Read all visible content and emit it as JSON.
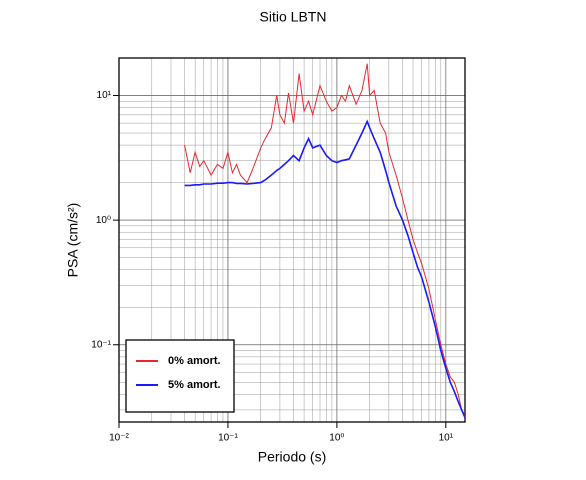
{
  "chart_data": {
    "type": "line",
    "title": "Sitio LBTN",
    "xlabel": "Periodo (s)",
    "ylabel": "PSA (cm/s²)",
    "xscale": "log",
    "yscale": "log",
    "grid": true,
    "legend": "lower left",
    "xlim": [
      0.01,
      15
    ],
    "ylim": [
      0.024,
      20
    ],
    "xticks": [
      {
        "value": 0.01,
        "label": "10⁻²"
      },
      {
        "value": 0.1,
        "label": "10⁻¹"
      },
      {
        "value": 1,
        "label": "10⁰"
      },
      {
        "value": 10,
        "label": "10¹"
      }
    ],
    "yticks": [
      {
        "value": 0.1,
        "label": "10⁻¹"
      },
      {
        "value": 1,
        "label": "10⁰"
      },
      {
        "value": 10,
        "label": "10¹"
      }
    ],
    "x": [
      0.04,
      0.045,
      0.05,
      0.055,
      0.06,
      0.07,
      0.08,
      0.09,
      0.1,
      0.11,
      0.12,
      0.13,
      0.15,
      0.17,
      0.2,
      0.22,
      0.25,
      0.28,
      0.3,
      0.33,
      0.36,
      0.4,
      0.45,
      0.5,
      0.55,
      0.6,
      0.7,
      0.8,
      0.9,
      1.0,
      1.1,
      1.2,
      1.3,
      1.5,
      1.7,
      1.9,
      2.0,
      2.2,
      2.5,
      2.8,
      3.0,
      3.5,
      4.0,
      4.5,
      5.0,
      5.5,
      6.0,
      7.0,
      8.0,
      9.0,
      10,
      11,
      12,
      13,
      14,
      15
    ],
    "series": [
      {
        "name": "0% amort.",
        "color": "#e8282d",
        "width": 1,
        "values": [
          4.0,
          2.4,
          3.5,
          2.7,
          3.0,
          2.3,
          2.8,
          2.6,
          3.5,
          2.4,
          2.8,
          2.3,
          2.0,
          2.6,
          3.8,
          4.5,
          5.5,
          10,
          7,
          6,
          10.5,
          6,
          15,
          7.5,
          9,
          7,
          12,
          9,
          7.5,
          8,
          10,
          9,
          12,
          8.5,
          11,
          18,
          10,
          11,
          6,
          5,
          3.5,
          2.3,
          1.5,
          1.0,
          0.7,
          0.55,
          0.45,
          0.28,
          0.16,
          0.1,
          0.07,
          0.055,
          0.05,
          0.04,
          0.03,
          0.027
        ]
      },
      {
        "name": "5% amort.",
        "color": "#1a1aff",
        "width": 1.6,
        "values": [
          1.9,
          1.9,
          1.92,
          1.92,
          1.95,
          1.95,
          1.98,
          1.98,
          2.0,
          2.0,
          1.97,
          1.97,
          1.95,
          1.97,
          2.0,
          2.1,
          2.3,
          2.5,
          2.6,
          2.8,
          3.0,
          3.3,
          3.0,
          3.8,
          4.5,
          3.8,
          4.0,
          3.3,
          3.0,
          2.9,
          3.0,
          3.05,
          3.1,
          4.0,
          5.0,
          6.2,
          5.5,
          4.5,
          3.5,
          2.5,
          2.0,
          1.3,
          1.0,
          0.75,
          0.55,
          0.42,
          0.35,
          0.22,
          0.14,
          0.09,
          0.065,
          0.05,
          0.042,
          0.035,
          0.03,
          0.026
        ]
      }
    ]
  }
}
